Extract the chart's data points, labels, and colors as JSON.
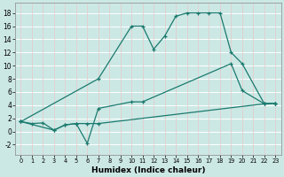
{
  "xlabel": "Humidex (Indice chaleur)",
  "xlim": [
    -0.5,
    23.5
  ],
  "ylim": [
    -3.5,
    19.5
  ],
  "yticks": [
    -2,
    0,
    2,
    4,
    6,
    8,
    10,
    12,
    14,
    16,
    18
  ],
  "xticks": [
    0,
    1,
    2,
    3,
    4,
    5,
    6,
    7,
    8,
    9,
    10,
    11,
    12,
    13,
    14,
    15,
    16,
    17,
    18,
    19,
    20,
    21,
    22,
    23
  ],
  "background_color": "#cce8e5",
  "grid_color_h": "#ffffff",
  "grid_color_v": "#e8c8c8",
  "line_color": "#1a7a6e",
  "line1_x": [
    0,
    1,
    2,
    3,
    4,
    5,
    6,
    7,
    22,
    23
  ],
  "line1_y": [
    1.5,
    1.2,
    1.3,
    0.2,
    1.0,
    1.2,
    1.2,
    1.2,
    4.2,
    4.3
  ],
  "line2_x": [
    0,
    3,
    4,
    5,
    6,
    7,
    10,
    11,
    19,
    20,
    22,
    23
  ],
  "line2_y": [
    1.5,
    0.2,
    1.0,
    1.2,
    -1.8,
    3.5,
    4.5,
    4.5,
    10.3,
    6.2,
    4.2,
    4.3
  ],
  "line3_x": [
    0,
    7,
    10,
    11,
    12,
    13,
    14,
    15,
    16,
    17,
    18,
    19,
    20,
    22,
    23
  ],
  "line3_y": [
    1.5,
    8.0,
    16.0,
    16.0,
    12.5,
    14.5,
    17.5,
    18.0,
    18.0,
    18.0,
    18.0,
    12.0,
    10.3,
    4.2,
    4.3
  ]
}
